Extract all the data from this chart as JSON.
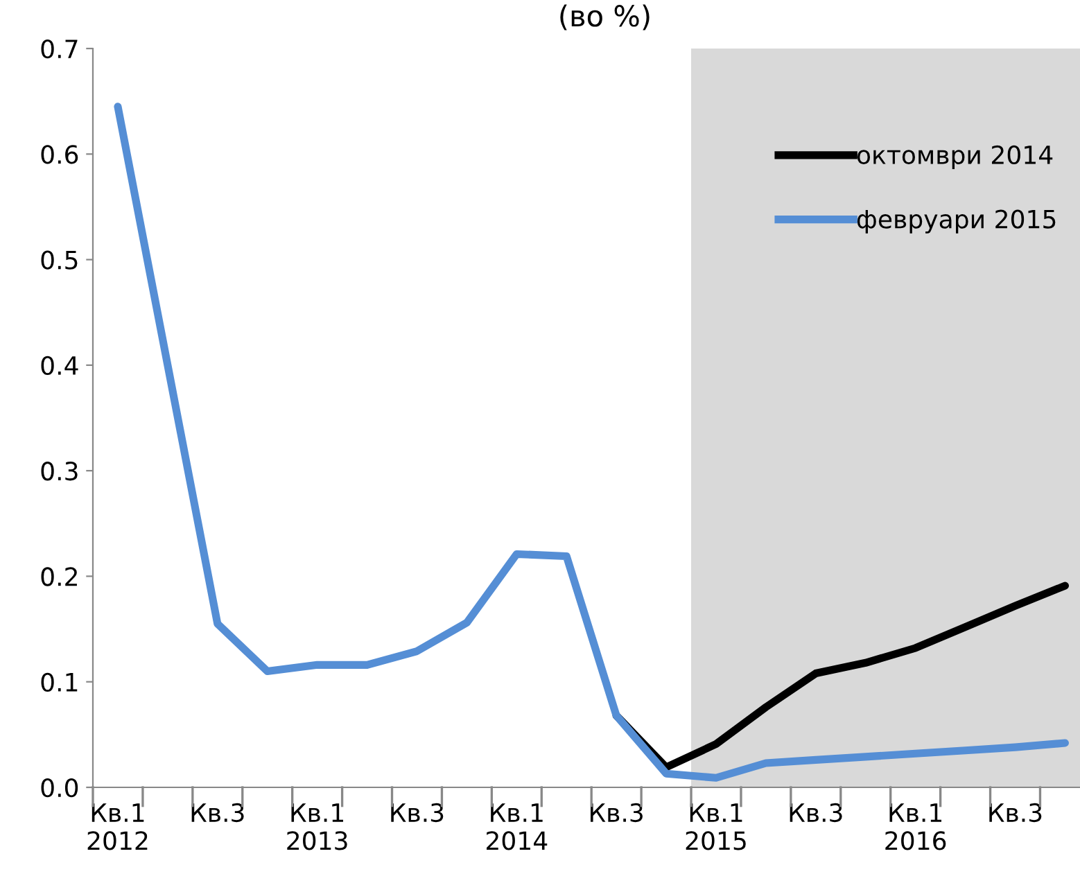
{
  "chart_data": {
    "type": "line",
    "title": "(во %)",
    "categories": [
      "Кв.1\n2012",
      null,
      "Кв.3",
      null,
      "Кв.1\n2013",
      null,
      "Кв.3",
      null,
      "Кв.1\n2014",
      null,
      "Кв.3",
      null,
      "Кв.1\n2015",
      null,
      "Кв.3",
      null,
      "Кв.1\n2016",
      null,
      "Кв.3",
      null
    ],
    "series": [
      {
        "name": "октомври 2014",
        "color": "#000000",
        "values": [
          null,
          null,
          null,
          null,
          null,
          null,
          null,
          null,
          null,
          null,
          0.068,
          0.019,
          0.041,
          0.076,
          0.108,
          0.118,
          0.132,
          0.152,
          0.172,
          0.191
        ]
      },
      {
        "name": "февруари 2015",
        "color": "#558ed5",
        "values": [
          0.645,
          0.4,
          0.155,
          0.11,
          0.116,
          0.116,
          0.129,
          0.156,
          0.221,
          0.219,
          0.068,
          0.013,
          0.009,
          0.023,
          0.026,
          0.029,
          0.032,
          0.035,
          0.038,
          0.042
        ]
      }
    ],
    "ylim": [
      0,
      0.7
    ],
    "yticks": [
      {
        "value": 0,
        "label": "0.0"
      },
      0.1,
      0.2,
      0.3,
      0.4,
      0.5,
      0.6,
      0.7
    ],
    "grid": false,
    "legend": "top right",
    "marker": "none",
    "line_style": "solid"
  }
}
